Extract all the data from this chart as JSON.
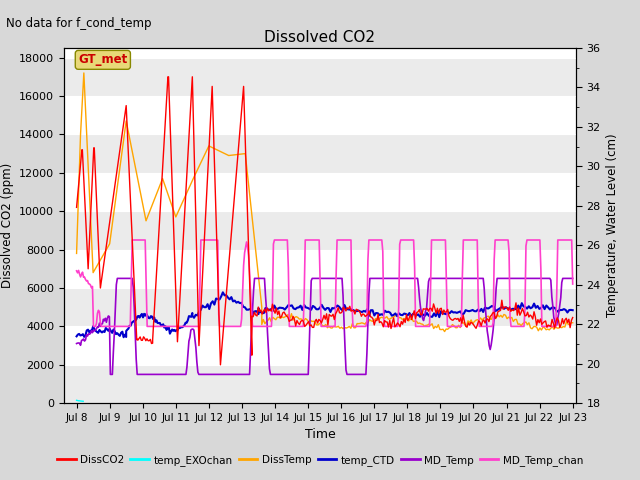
{
  "title": "Dissolved CO2",
  "subtitle": "No data for f_cond_temp",
  "xlabel": "Time",
  "ylabel_left": "Dissolved CO2 (ppm)",
  "ylabel_right": "Temperature, Water Level (cm)",
  "xlim_days": [
    7.62,
    23.1
  ],
  "ylim_left": [
    0,
    18500
  ],
  "ylim_right": [
    18,
    36
  ],
  "yticks_left": [
    0,
    2000,
    4000,
    6000,
    8000,
    10000,
    12000,
    14000,
    16000,
    18000
  ],
  "yticks_right": [
    18,
    20,
    22,
    24,
    26,
    28,
    30,
    32,
    34,
    36
  ],
  "xtick_labels": [
    "Jul 8",
    "Jul 9",
    "Jul 10",
    "Jul 11",
    "Jul 12",
    "Jul 13",
    "Jul 14",
    "Jul 15",
    "Jul 16",
    "Jul 17",
    "Jul 18",
    "Jul 19",
    "Jul 20",
    "Jul 21",
    "Jul 22",
    "Jul 23"
  ],
  "xtick_positions": [
    8,
    9,
    10,
    11,
    12,
    13,
    14,
    15,
    16,
    17,
    18,
    19,
    20,
    21,
    22,
    23
  ],
  "gt_met_box_color": "#e8d878",
  "gt_met_text": "GT_met",
  "gt_met_text_color": "#cc0000",
  "background_color": "#d8d8d8",
  "plot_bg_color": "#ffffff",
  "grid_color": "#d0d0d0",
  "series": {
    "DissCO2": {
      "color": "#ff0000",
      "lw": 1.0
    },
    "temp_EXOchan": {
      "color": "#00ffff",
      "lw": 1.0
    },
    "DissTemp": {
      "color": "#ffa500",
      "lw": 1.0
    },
    "temp_CTD": {
      "color": "#0000cc",
      "lw": 1.5
    },
    "MD_Temp": {
      "color": "#9900cc",
      "lw": 1.2
    },
    "MD_Temp_chan": {
      "color": "#ff40cc",
      "lw": 1.2
    }
  },
  "stripe_colors": [
    "#f0f0f0",
    "#e0e0e0"
  ],
  "right_tick_minor": true
}
